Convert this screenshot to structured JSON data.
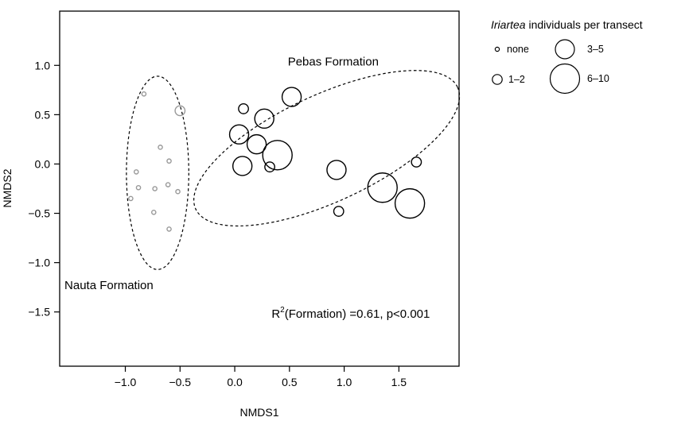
{
  "chart_data": {
    "type": "scatter",
    "title": "",
    "xlabel": "NMDS1",
    "ylabel": "NMDS2",
    "xlim": [
      -1.6,
      2.05
    ],
    "ylim": [
      -2.05,
      1.55
    ],
    "x_ticks": [
      -1.0,
      -0.5,
      0.0,
      0.5,
      1.0,
      1.5
    ],
    "x_tick_labels": [
      "−1.0",
      "−0.5",
      "0.0",
      "0.5",
      "1.0",
      "1.5"
    ],
    "y_ticks": [
      -1.5,
      -1.0,
      -0.5,
      0.0,
      0.5,
      1.0
    ],
    "y_tick_labels": [
      "−1.5",
      "−1.0",
      "−0.5",
      "0.0",
      "0.5",
      "1.0"
    ],
    "grid": false,
    "series": [
      {
        "name": "Nauta Formation",
        "color": "#999999",
        "points": [
          {
            "x": -0.83,
            "y": 0.71,
            "size": "none"
          },
          {
            "x": -0.5,
            "y": 0.54,
            "size": "1–2"
          },
          {
            "x": -0.68,
            "y": 0.17,
            "size": "none"
          },
          {
            "x": -0.6,
            "y": 0.03,
            "size": "none"
          },
          {
            "x": -0.9,
            "y": -0.08,
            "size": "none"
          },
          {
            "x": -0.88,
            "y": -0.24,
            "size": "none"
          },
          {
            "x": -0.73,
            "y": -0.25,
            "size": "none"
          },
          {
            "x": -0.61,
            "y": -0.21,
            "size": "none"
          },
          {
            "x": -0.52,
            "y": -0.28,
            "size": "none"
          },
          {
            "x": -0.95,
            "y": -0.35,
            "size": "none"
          },
          {
            "x": -0.74,
            "y": -0.49,
            "size": "none"
          },
          {
            "x": -0.6,
            "y": -0.66,
            "size": "none"
          }
        ]
      },
      {
        "name": "Pebas Formation",
        "color": "#000000",
        "points": [
          {
            "x": 0.08,
            "y": 0.56,
            "size": "1–2"
          },
          {
            "x": 0.52,
            "y": 0.68,
            "size": "3–5"
          },
          {
            "x": 0.27,
            "y": 0.46,
            "size": "3–5"
          },
          {
            "x": 0.04,
            "y": 0.3,
            "size": "3–5"
          },
          {
            "x": 0.2,
            "y": 0.2,
            "size": "3–5"
          },
          {
            "x": 0.39,
            "y": 0.09,
            "size": "6–10"
          },
          {
            "x": 0.07,
            "y": -0.02,
            "size": "3–5"
          },
          {
            "x": 0.32,
            "y": -0.03,
            "size": "1–2"
          },
          {
            "x": 0.93,
            "y": -0.06,
            "size": "3–5"
          },
          {
            "x": 1.66,
            "y": 0.02,
            "size": "1–2"
          },
          {
            "x": 1.35,
            "y": -0.24,
            "size": "6–10"
          },
          {
            "x": 1.6,
            "y": -0.4,
            "size": "6–10"
          },
          {
            "x": 0.95,
            "y": -0.48,
            "size": "1–2"
          }
        ]
      }
    ],
    "ellipses": [
      {
        "name": "nauta-ellipse",
        "cx": -0.705,
        "cy": -0.09,
        "rx": 0.285,
        "ry": 0.98,
        "angle_deg": 0
      },
      {
        "name": "pebas-ellipse",
        "cx": 0.84,
        "cy": 0.16,
        "rx": 1.32,
        "ry": 0.54,
        "angle_deg": -25
      }
    ],
    "annotations": [
      {
        "text": "Pebas Formation",
        "x": 0.9,
        "y": 1.0
      },
      {
        "text": "Nauta Formation",
        "x": -1.15,
        "y": -1.27
      },
      {
        "text_main": "R",
        "superscript": "2",
        "text_rest": "(Formation) =0.61, p<0.001",
        "x": 1.06,
        "y": -1.56
      }
    ],
    "legend": {
      "title_italic": "Iriartea",
      "title_rest": " individuals per transect",
      "placement": "outside-top-right",
      "entries": [
        {
          "label": "none",
          "size": "none"
        },
        {
          "label": "1–2",
          "size": "1–2"
        },
        {
          "label": "3–5",
          "size": "3–5"
        },
        {
          "label": "6–10",
          "size": "6–10"
        }
      ]
    },
    "size_classes": {
      "none": 2.6,
      "1–2": 6.2,
      "3–5": 12.0,
      "6–10": 18.5
    }
  }
}
